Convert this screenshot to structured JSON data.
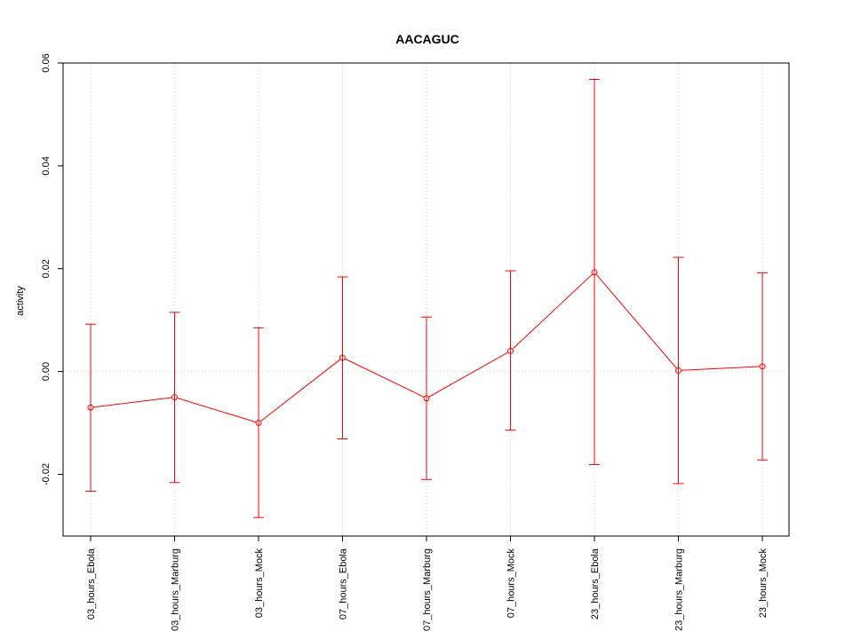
{
  "chart_data": {
    "type": "line",
    "title": "AACAGUC",
    "xlabel": "",
    "ylabel": "activity",
    "categories": [
      "03_hours_Ebola",
      "03_hours_Marburg",
      "03_hours_Mock",
      "07_hours_Ebola",
      "07_hours_Marburg",
      "07_hours_Mock",
      "23_hours_Ebola",
      "23_hours_Marburg",
      "23_hours_Mock"
    ],
    "series": [
      {
        "values": [
          -0.007,
          -0.005,
          -0.01,
          0.0027,
          -0.0052,
          0.004,
          0.0193,
          0.0002,
          0.001
        ],
        "upper": [
          0.0092,
          0.0115,
          0.0085,
          0.0184,
          0.0106,
          0.0196,
          0.0568,
          0.0222,
          0.0192
        ],
        "lower": [
          -0.0233,
          -0.0216,
          -0.0284,
          -0.0131,
          -0.021,
          -0.0114,
          -0.0181,
          -0.0218,
          -0.0172
        ]
      }
    ],
    "ylim": [
      -0.032,
      0.06
    ],
    "yticks": [
      -0.02,
      0.0,
      0.02,
      0.04,
      0.06
    ],
    "ytick_labels": [
      "-0.02",
      "0.00",
      "0.02",
      "0.04",
      "0.06"
    ],
    "grid": true,
    "colors": {
      "series": "#ff0000",
      "grid": "#d3d3d3",
      "axis": "#000000"
    }
  }
}
